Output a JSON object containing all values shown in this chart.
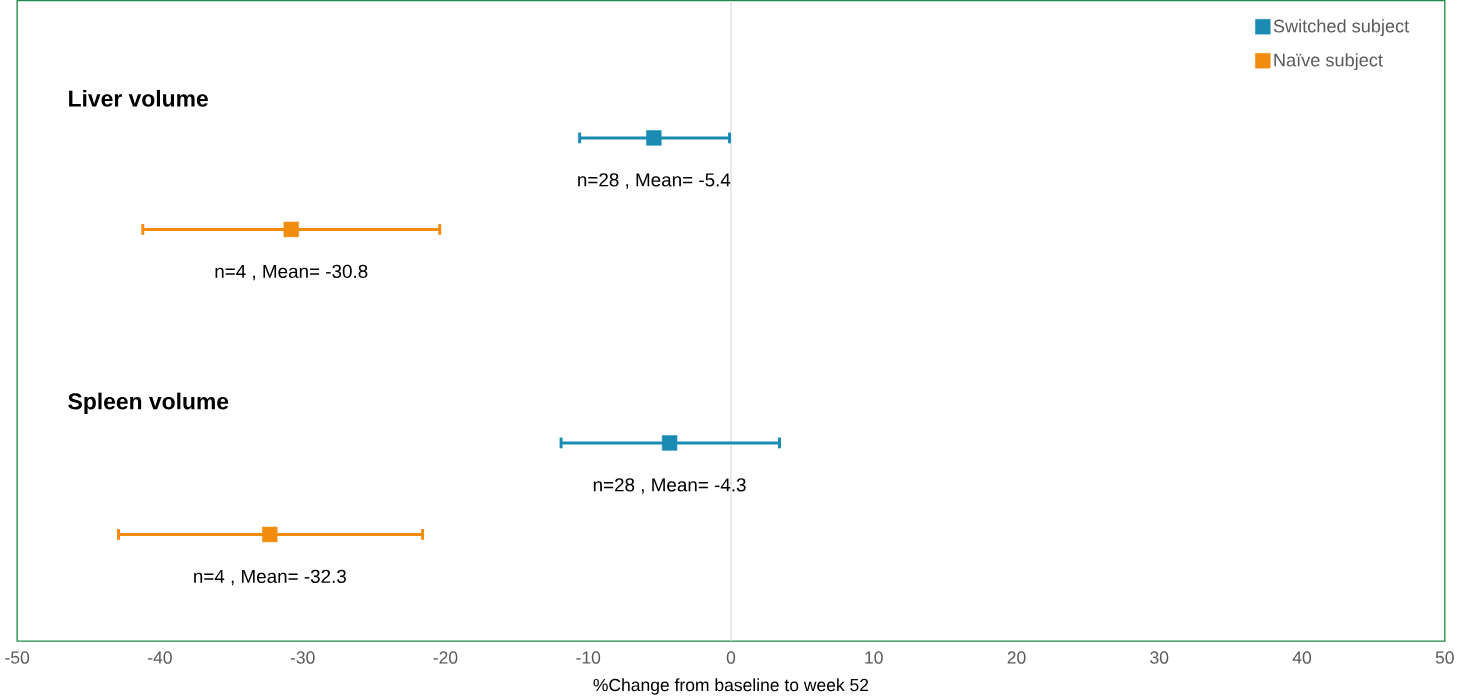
{
  "chart_data": {
    "type": "scatter",
    "orientation": "horizontal",
    "xlabel": "%Change from baseline to week 52",
    "categories": [
      null,
      null,
      null,
      null,
      null,
      null,
      null,
      null,
      null,
      null,
      null,
      null,
      null,
      null,
      null,
      null,
      null,
      null,
      null,
      null,
      null
    ],
    "series": [
      {
        "name": "Switched subject",
        "color": "#1a8cb4",
        "values": [
          null,
          null,
          null,
          null,
          -5.4,
          null,
          null,
          null,
          null,
          null,
          null,
          null,
          null,
          null,
          -4.3,
          null,
          null,
          null,
          null,
          null,
          null
        ],
        "errors": [
          null,
          null,
          null,
          null,
          [
            -10.6,
            -0.1
          ],
          null,
          null,
          null,
          null,
          null,
          null,
          null,
          null,
          null,
          [
            -11.9,
            3.4
          ],
          null,
          null,
          null,
          null,
          null,
          null
        ],
        "value_labels": [
          null,
          null,
          null,
          null,
          "n=28 , Mean= -5.4",
          null,
          null,
          null,
          null,
          null,
          null,
          null,
          null,
          null,
          "n=28 , Mean= -4.3",
          null,
          null,
          null,
          null,
          null,
          null
        ]
      },
      {
        "name": "Naïve subject",
        "color": "#f28c0f",
        "values": [
          null,
          null,
          null,
          null,
          null,
          null,
          null,
          -30.8,
          null,
          null,
          null,
          null,
          null,
          null,
          null,
          null,
          null,
          -32.3,
          null,
          null,
          null
        ],
        "errors": [
          null,
          null,
          null,
          null,
          null,
          null,
          null,
          [
            -41.2,
            -20.4
          ],
          null,
          null,
          null,
          null,
          null,
          null,
          null,
          null,
          null,
          [
            -42.9,
            -21.6
          ],
          null,
          null,
          null
        ],
        "value_labels": [
          null,
          null,
          null,
          null,
          null,
          null,
          null,
          "n=4 , Mean= -30.8",
          null,
          null,
          null,
          null,
          null,
          null,
          null,
          null,
          null,
          "n=4 , Mean= -32.3",
          null,
          null,
          null
        ]
      }
    ],
    "annotations": [
      "Liver volume",
      "Spleen volume"
    ],
    "xlim": [
      -50,
      50
    ],
    "xticks": [
      -50,
      -40,
      -30,
      -20,
      -10,
      0,
      10,
      20,
      30,
      40,
      50
    ],
    "ref_lines": [
      {
        "axis": "x",
        "value": 0,
        "color": "#d9d9d9"
      }
    ],
    "legend": "top right",
    "marker": "square",
    "grid": false
  }
}
